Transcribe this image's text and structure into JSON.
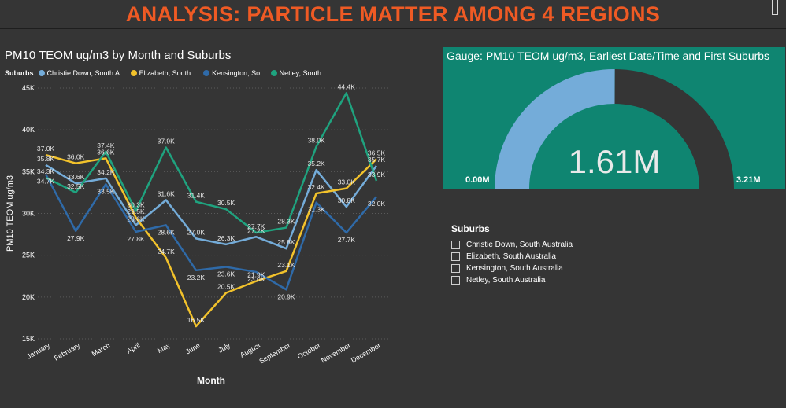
{
  "page": {
    "title": "ANALYSIS: PARTICLE MATTER AMONG 4 REGIONS"
  },
  "line_chart": {
    "title": "PM10 TEOM ug/m3 by Month and Suburbs",
    "legend_title": "Suburbs",
    "legend_labels": [
      "Christie Down, South A...",
      "Elizabeth, South ...",
      "Kensington, So...",
      "Netley, South ..."
    ]
  },
  "chart_data": [
    {
      "type": "line",
      "title": "PM10 TEOM ug/m3 by Month and Suburbs",
      "xlabel": "Month",
      "ylabel": "PM10 TEOM ug/m3",
      "categories": [
        "January",
        "February",
        "March",
        "April",
        "May",
        "June",
        "July",
        "August",
        "September",
        "October",
        "November",
        "December"
      ],
      "ylim": [
        15000,
        45000
      ],
      "yticks": [
        "15K",
        "20K",
        "25K",
        "30K",
        "35K",
        "40K",
        "45K"
      ],
      "grid": true,
      "legend": "top",
      "series": [
        {
          "name": "Christie Down, South Australia",
          "color": "#74acd9",
          "values": [
            35800,
            33600,
            34200,
            28600,
            31600,
            27000,
            26300,
            27200,
            25800,
            35200,
            30800,
            35700
          ],
          "labels": [
            "35.8K",
            "33.6K",
            "34.2K",
            "28.6K",
            "31.6K",
            "27.0K",
            "26.3K",
            "27.2K",
            "25.8K",
            "35.2K",
            "30.8K",
            "35.7K"
          ]
        },
        {
          "name": "Elizabeth, South Australia",
          "color": "#f2c22b",
          "values": [
            37000,
            36000,
            36600,
            29500,
            24700,
            16500,
            20500,
            21900,
            23100,
            32400,
            33000,
            36500
          ],
          "labels": [
            "37.0K",
            "36.0K",
            "36.6K",
            "29.5K",
            "24.7K",
            "16.5K",
            "20.5K",
            "21.9K",
            "23.1K",
            "32.4K",
            "33.0K",
            "36.5K"
          ]
        },
        {
          "name": "Kensington, South Australia",
          "color": "#2f6aa8",
          "values": [
            34700,
            27900,
            33500,
            27800,
            28600,
            23200,
            23600,
            23000,
            20900,
            31300,
            27700,
            32000
          ],
          "labels": [
            "34.7K",
            "27.9K",
            "33.5K",
            "27.8K",
            "28.6K",
            "23.2K",
            "23.6K",
            "23.0K",
            "20.9K",
            "31.3K",
            "27.7K",
            "32.0K"
          ]
        },
        {
          "name": "Netley, South Australia",
          "color": "#1fa37f",
          "values": [
            34300,
            32500,
            37400,
            30300,
            37900,
            31400,
            30500,
            27700,
            28300,
            38000,
            44400,
            33900
          ],
          "labels": [
            "34.3K",
            "32.5K",
            "37.4K",
            "30.3K",
            "37.9K",
            "31.4K",
            "30.5K",
            "27.7K",
            "28.3K",
            "38.0K",
            "44.4K",
            "33.9K"
          ]
        }
      ]
    },
    {
      "type": "gauge",
      "title": "Gauge: PM10 TEOM ug/m3, Earliest Date/Time and First Suburbs",
      "value": 1.61,
      "min": 0,
      "max": 3.21,
      "value_label": "1.61M",
      "min_label": "0.00M",
      "max_label": "3.21M",
      "fill_color": "#74acd9",
      "track_color": "#353535"
    }
  ],
  "slicer": {
    "title": "Suburbs",
    "items": [
      "Christie Down, South Australia",
      "Elizabeth, South Australia",
      "Kensington, South Australia",
      "Netley, South Australia"
    ]
  },
  "colors": {
    "accent": "#ef5a24",
    "background": "#353535",
    "gauge_panel": "#0f8571"
  }
}
